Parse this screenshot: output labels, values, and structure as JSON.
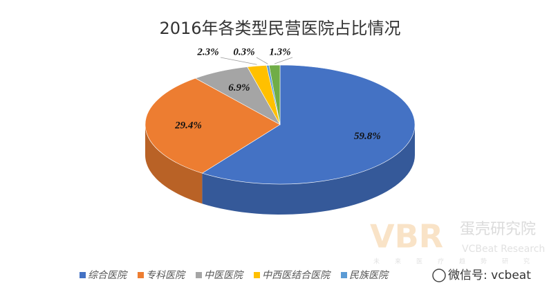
{
  "chart_data": {
    "type": "pie",
    "title": "2016年各类型民营医院占比情况",
    "categories": [
      "综合医院",
      "专科医院",
      "中医医院",
      "中西医结合医院",
      "民族医院",
      null
    ],
    "values": [
      59.8,
      29.4,
      6.9,
      2.3,
      0.3,
      1.3
    ],
    "value_labels": [
      "59.8%",
      "29.4%",
      "6.9%",
      "2.3%",
      "0.3%",
      "1.3%"
    ],
    "colors": [
      "#4472c4",
      "#ed7d31",
      "#a5a5a5",
      "#ffc000",
      "#5b9bd5",
      "#70ad47"
    ],
    "legend": "bottom",
    "watermark": {
      "logo": "VBR",
      "name": "蛋壳研究院",
      "english": "VCBeat Research",
      "slogan": "未来医疗趋势研究",
      "wechat": "微信号: vcbeat"
    }
  }
}
